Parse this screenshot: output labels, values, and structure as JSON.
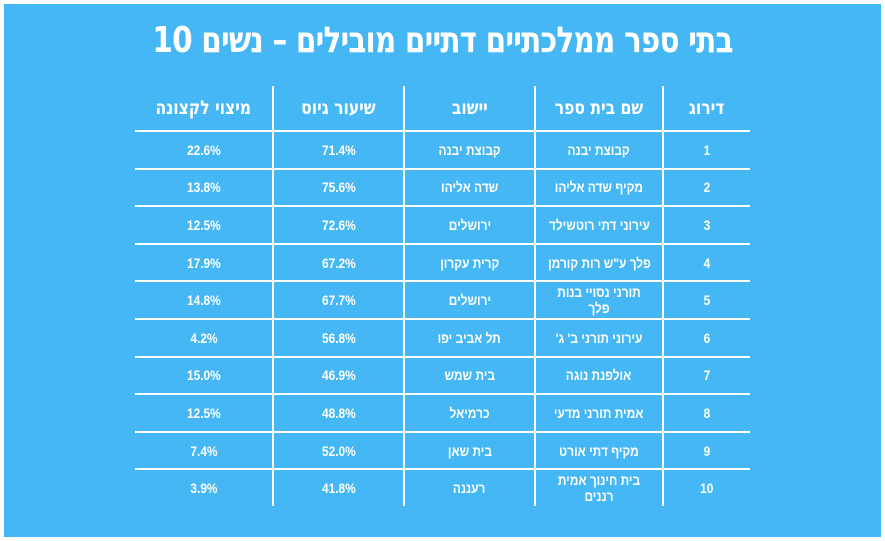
{
  "title": "10 בתי ספר ממלכתיים דתיים מובילים – נשים",
  "colors": {
    "background": "#44b7f4",
    "text": "#ffffff"
  },
  "table": {
    "headers": {
      "rank": "דירוג",
      "school": "שם בית ספר",
      "city": "יישוב",
      "gross": "שיעור גיוס",
      "max": "מיצוי לקצונה"
    },
    "rows": [
      {
        "rank": "1",
        "school": "קבוצת יבנה",
        "city": "קבוצת יבנה",
        "gross": "71.4%",
        "max": "22.6%"
      },
      {
        "rank": "2",
        "school": "מקיף שדה אליהו",
        "city": "שדה אליהו",
        "gross": "75.6%",
        "max": "13.8%"
      },
      {
        "rank": "3",
        "school": "עירוני דתי רוטשילד",
        "city": "ירושלים",
        "gross": "72.6%",
        "max": "12.5%"
      },
      {
        "rank": "4",
        "school": "פלך ע\"ש רות קורמן",
        "city": "קרית עקרון",
        "gross": "67.2%",
        "max": "17.9%"
      },
      {
        "rank": "5",
        "school": "תורני נסויי בנות פלך",
        "city": "ירושלים",
        "gross": "67.7%",
        "max": "14.8%"
      },
      {
        "rank": "6",
        "school": "עירוני תורני ב' ג'",
        "city": "תל אביב יפו",
        "gross": "56.8%",
        "max": "4.2%"
      },
      {
        "rank": "7",
        "school": "אולפנת נוגה",
        "city": "בית שמש",
        "gross": "46.9%",
        "max": "15.0%"
      },
      {
        "rank": "8",
        "school": "אמית תורני מדעי",
        "city": "כרמיאל",
        "gross": "48.8%",
        "max": "12.5%"
      },
      {
        "rank": "9",
        "school": "מקיף דתי אורט",
        "city": "בית שאן",
        "gross": "52.0%",
        "max": "7.4%"
      },
      {
        "rank": "10",
        "school": "בית חינוך אמית רננים",
        "city": "רעננה",
        "gross": "41.8%",
        "max": "3.9%"
      }
    ]
  }
}
